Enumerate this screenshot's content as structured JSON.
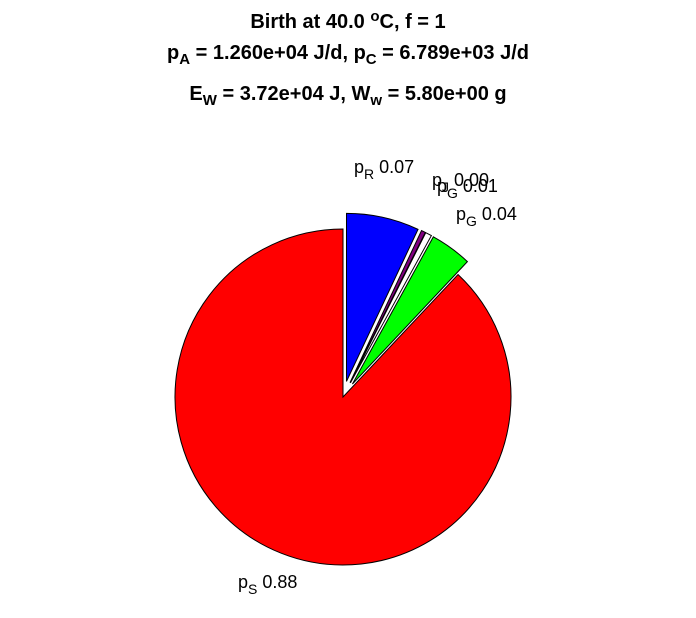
{
  "chart_data": {
    "type": "pie",
    "title": {
      "line1": {
        "text": "Birth at 40.0 ",
        "sup": "o",
        "tail": "C, f = 1"
      },
      "line2": [
        {
          "text": "p",
          "sub": "A",
          "tail": " = 1.260e+04 J/d, "
        },
        {
          "text": "p",
          "sub": "C",
          "tail": " = 6.789e+03 J/d"
        }
      ],
      "line3": [
        {
          "text": "E",
          "sub": "W",
          "tail": " = 3.72e+04 J, "
        },
        {
          "text": "W",
          "sub": "w",
          "tail": " = 5.80e+00 g"
        }
      ]
    },
    "slices": [
      {
        "base": "p",
        "sub": "S",
        "value_label": "0.88",
        "value": 0.88,
        "color": "#ff0000",
        "exploded": false
      },
      {
        "base": "p",
        "sub": "R",
        "value_label": "0.07",
        "value": 0.07,
        "color": "#0000ff",
        "exploded": true
      },
      {
        "base": "p",
        "sub": "J",
        "value_label": "0.00",
        "value": 0.004,
        "color": "#800080",
        "exploded": true
      },
      {
        "base": "p",
        "sub": "G",
        "value_label": "0.01",
        "value": 0.006,
        "color": "#ffffff",
        "exploded": true
      },
      {
        "base": "p",
        "sub": "G",
        "value_label": "0.04",
        "value": 0.04,
        "color": "#00ff00",
        "exploded": true
      }
    ]
  }
}
